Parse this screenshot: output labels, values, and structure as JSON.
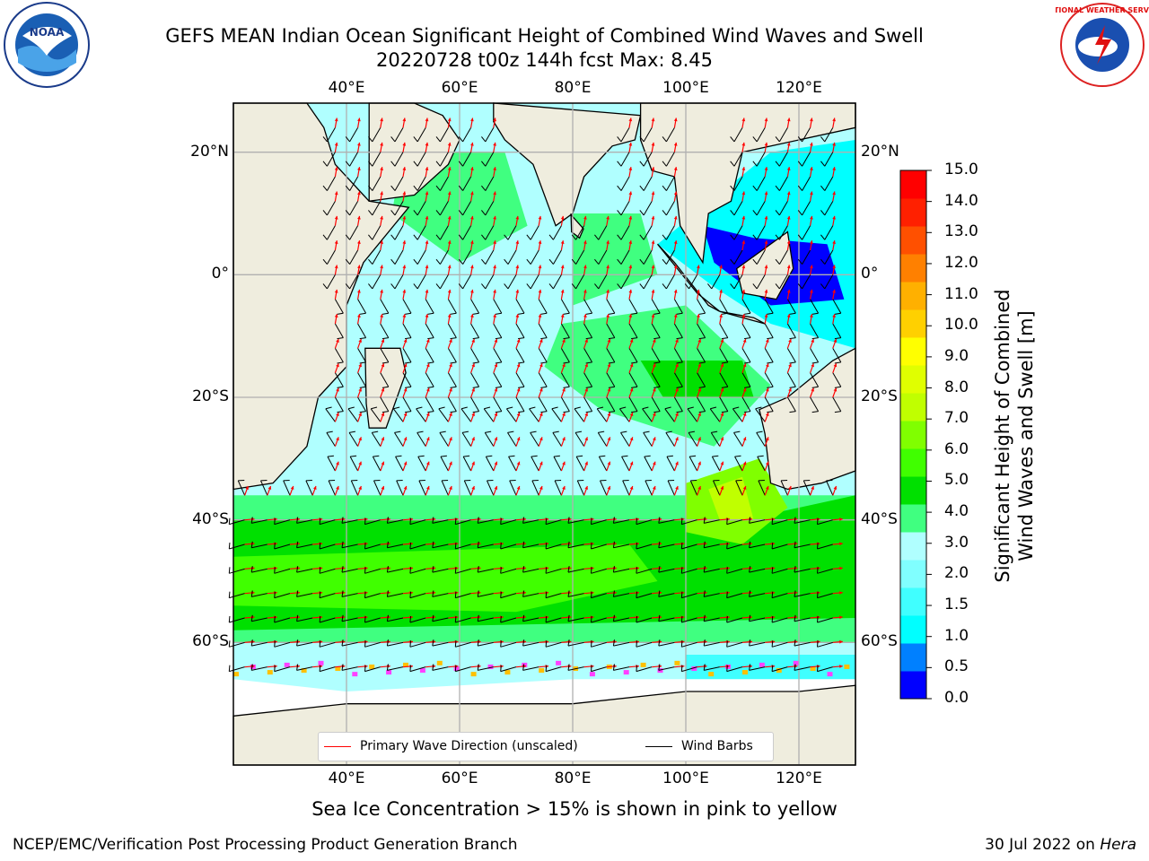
{
  "title": {
    "line1": "GEFS MEAN Indian Ocean Significant Height of Combined Wind Waves and Swell",
    "line2": "20220728 t00z 144h fcst   Max: 8.45"
  },
  "map": {
    "lon_ticks": [
      "40°E",
      "60°E",
      "80°E",
      "100°E",
      "120°E"
    ],
    "lat_ticks": [
      "20°N",
      "0°",
      "20°S",
      "40°S",
      "60°S"
    ],
    "extent": {
      "lon": [
        20,
        130
      ],
      "lat": [
        -80,
        28
      ]
    },
    "grid": true
  },
  "colorbar": {
    "label_line1": "Significant Height of Combined",
    "label_line2": "Wind Waves and Swell [m]",
    "ticks": [
      "15.0",
      "14.0",
      "13.0",
      "12.0",
      "11.0",
      "10.0",
      "9.0",
      "8.0",
      "7.0",
      "6.0",
      "5.0",
      "4.0",
      "3.0",
      "2.0",
      "1.5",
      "1.0",
      "0.5",
      "0.0"
    ],
    "colors": [
      "#0000ff",
      "#0080ff",
      "#00ffff",
      "#40ffff",
      "#80ffff",
      "#b0ffff",
      "#40ff80",
      "#00e000",
      "#40ff00",
      "#80ff00",
      "#c0ff00",
      "#e0ff00",
      "#ffff00",
      "#ffd000",
      "#ffb000",
      "#ff8000",
      "#ff5000",
      "#ff2000",
      "#ff0000"
    ]
  },
  "legend": {
    "wave_label": "Primary Wave Direction (unscaled)",
    "wave_color": "#ff0000",
    "wind_label": "Wind Barbs",
    "wind_color": "#000000"
  },
  "ice_note": "Sea Ice Concentration > 15% is shown in pink to yellow",
  "footer": {
    "left": "NCEP/EMC/Verification Post Processing Product Generation Branch",
    "date": "30 Jul 2022 on",
    "host": "Hera"
  },
  "logos": {
    "noaa_text": "NOAA",
    "nws_text": "NATIONAL WEATHER SERVICE"
  }
}
